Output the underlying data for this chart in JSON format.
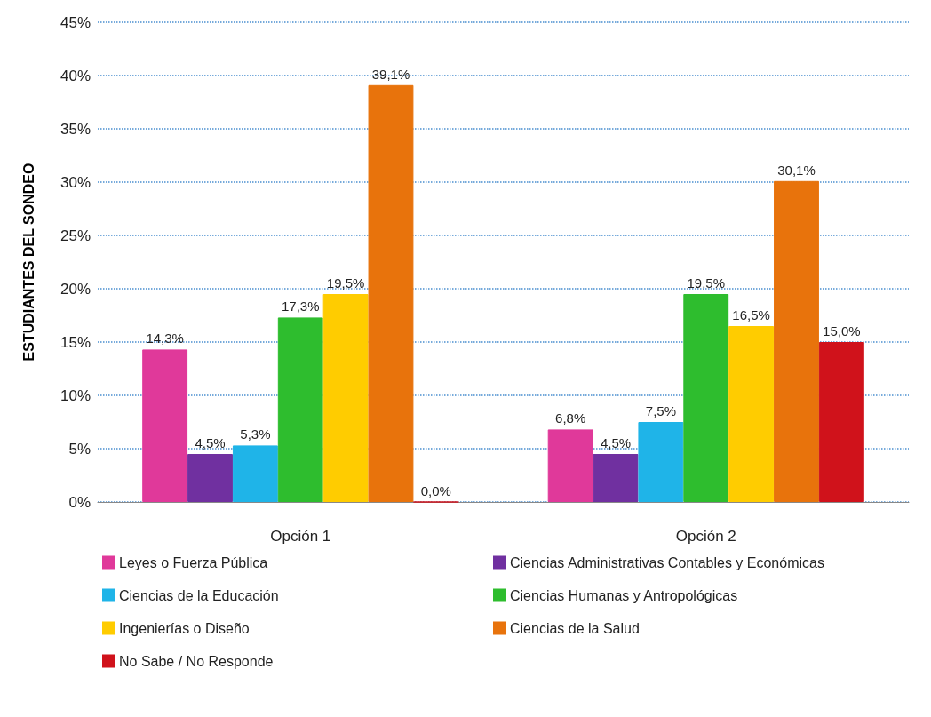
{
  "chart_data": {
    "type": "bar",
    "ylabel": "ESTUDIANTES DEL SONDEO",
    "categories": [
      "Opción 1",
      "Opción 2"
    ],
    "series": [
      {
        "name": "Leyes o Fuerza Pública",
        "color": "#e0399a",
        "values": [
          14.3,
          6.8
        ],
        "value_labels": [
          "14,3%",
          "6,8%"
        ]
      },
      {
        "name": "Ciencias Administrativas Contables y Económicas",
        "color": "#7030a0",
        "values": [
          4.5,
          4.5
        ],
        "value_labels": [
          "4,5%",
          "4,5%"
        ]
      },
      {
        "name": "Ciencias de la Educación",
        "color": "#1fb4e8",
        "values": [
          5.3,
          7.5
        ],
        "value_labels": [
          "5,3%",
          "7,5%"
        ]
      },
      {
        "name": "Ciencias Humanas y Antropológicas",
        "color": "#2ebd2e",
        "values": [
          17.3,
          19.5
        ],
        "value_labels": [
          "17,3%",
          "19,5%"
        ]
      },
      {
        "name": "Ingenierías o Diseño",
        "color": "#ffcc00",
        "values": [
          19.5,
          16.5
        ],
        "value_labels": [
          "19,5%",
          "16,5%"
        ]
      },
      {
        "name": "Ciencias de la Salud",
        "color": "#e8730c",
        "values": [
          39.1,
          30.1
        ],
        "value_labels": [
          "39,1%",
          "30,1%"
        ]
      },
      {
        "name": "No Sabe / No Responde",
        "color": "#d0121b",
        "values": [
          0,
          15.0
        ],
        "value_labels": [
          "0,0%",
          "15,0%"
        ]
      }
    ],
    "ylim": [
      0,
      45
    ],
    "yticks": [
      {
        "value": 0,
        "label": "0%"
      },
      {
        "value": 5,
        "label": "5%"
      },
      {
        "value": 10,
        "label": "10%"
      },
      {
        "value": 15,
        "label": "15%"
      },
      {
        "value": 20,
        "label": "20%"
      },
      {
        "value": 25,
        "label": "25%"
      },
      {
        "value": 30,
        "label": "30%"
      },
      {
        "value": 35,
        "label": "35%"
      },
      {
        "value": 40,
        "label": "40%"
      },
      {
        "value": 45,
        "label": "45%"
      }
    ],
    "grid": "y",
    "legend": "bottom"
  }
}
